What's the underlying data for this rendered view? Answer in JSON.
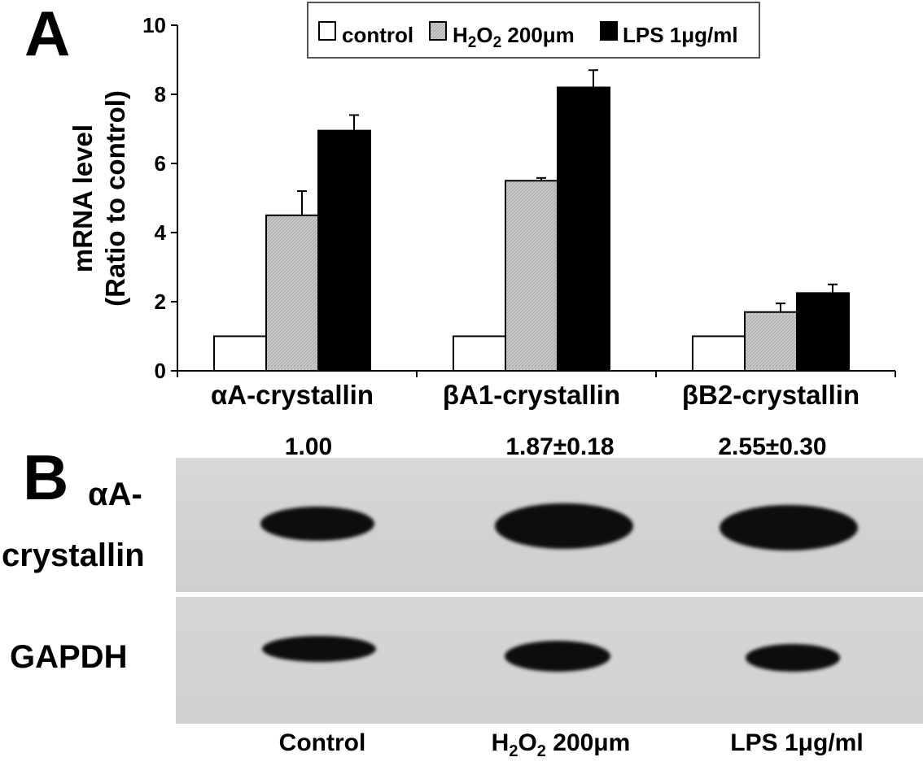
{
  "panel_a": {
    "letter": "A"
  },
  "panel_b": {
    "letter": "B",
    "quantification": [
      "1.00",
      "1.87±0.18",
      "2.55±0.30"
    ],
    "blot_labels": [
      "αA-",
      "crystallin",
      "GAPDH"
    ],
    "lane_labels": {
      "control": "Control",
      "h2o2_h": "H",
      "h2o2_sub1": "2",
      "h2o2_o": "O",
      "h2o2_sub2": "2",
      "h2o2_dose": " 200μm",
      "lps": "LPS 1μg/ml"
    }
  },
  "chart_data": {
    "type": "bar",
    "title": "",
    "xlabel": "",
    "ylabel": [
      "mRNA level",
      "(Ratio to control)"
    ],
    "ylim": [
      0,
      10
    ],
    "yticks": [
      "0",
      "2",
      "4",
      "6",
      "8",
      "10"
    ],
    "categories": [
      "αA-crystallin",
      "βA1-crystallin",
      "βB2-crystallin"
    ],
    "series": [
      {
        "name": "control",
        "values": [
          1.0,
          1.0,
          1.0
        ],
        "errors": [
          0,
          0,
          0
        ],
        "color": "#ffffff"
      },
      {
        "name": "H₂O₂ 200μm",
        "values": [
          4.5,
          5.5,
          1.7
        ],
        "errors": [
          0.7,
          0.08,
          0.25
        ],
        "color": "#c8c8c8"
      },
      {
        "name": "LPS 1μg/ml",
        "values": [
          6.95,
          8.2,
          2.25
        ],
        "errors": [
          0.45,
          0.5,
          0.25
        ],
        "color": "#000000"
      }
    ],
    "legend": {
      "position": "top-center",
      "entries": [
        {
          "text": "control"
        },
        {
          "h": "H",
          "sub1": "2",
          "o": "O",
          "sub2": "2",
          "rest": " 200μm"
        },
        {
          "text": "LPS 1μg/ml"
        }
      ]
    },
    "grid": false
  }
}
